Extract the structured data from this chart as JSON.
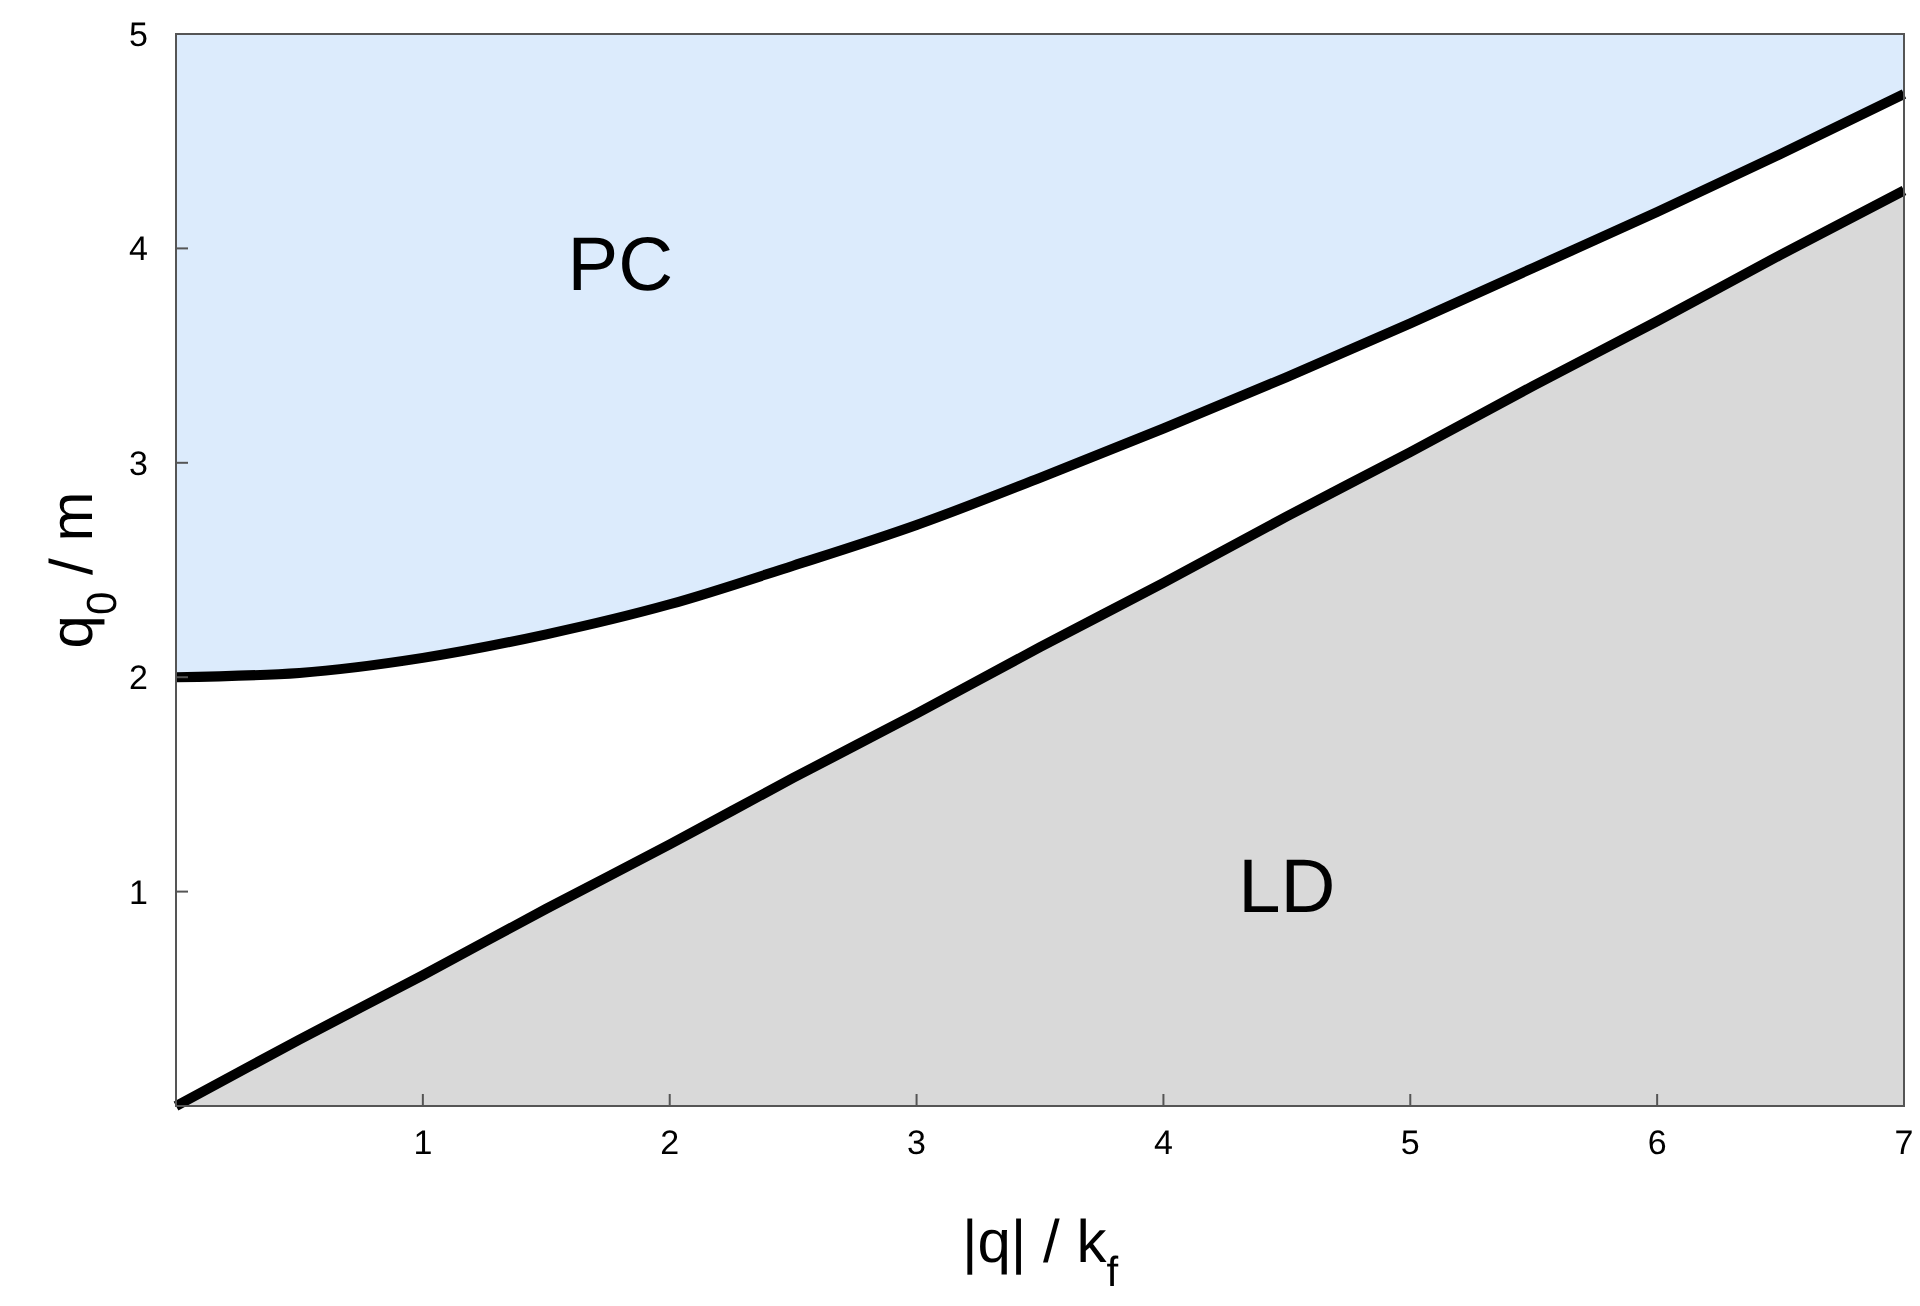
{
  "chart_data": {
    "type": "area",
    "xlabel": "|q| / k$_{f}$",
    "ylabel": "q$_{0}$ / m",
    "x": [
      0,
      0.5,
      1,
      1.5,
      2,
      2.5,
      3,
      3.5,
      4,
      4.5,
      5,
      5.5,
      6,
      6.5,
      7
    ],
    "series": [
      {
        "color": "#dcebfc",
        "values": [
          5,
          5,
          5,
          5,
          5,
          5,
          5,
          5,
          5,
          5,
          5,
          5,
          5,
          5,
          5
        ]
      },
      {
        "color": "#ffffff",
        "values": [
          2,
          2.02,
          2.09,
          2.2,
          2.34,
          2.52,
          2.71,
          2.93,
          3.16,
          3.4,
          3.65,
          3.91,
          4.17,
          4.44,
          4.72
        ]
      },
      {
        "color": "#d9d9d9",
        "values": [
          0,
          0.31,
          0.61,
          0.92,
          1.22,
          1.53,
          1.83,
          2.14,
          2.44,
          2.75,
          3.05,
          3.36,
          3.66,
          3.97,
          4.27
        ]
      }
    ],
    "xlim": [
      0,
      7
    ],
    "xticks": [
      1,
      2,
      3,
      4,
      5,
      6,
      7
    ],
    "ylim": [
      0,
      5
    ],
    "yticks": [
      1,
      2,
      3,
      4,
      5
    ],
    "annotations": [
      "PC",
      "LD"
    ],
    "line_style": "solid"
  }
}
